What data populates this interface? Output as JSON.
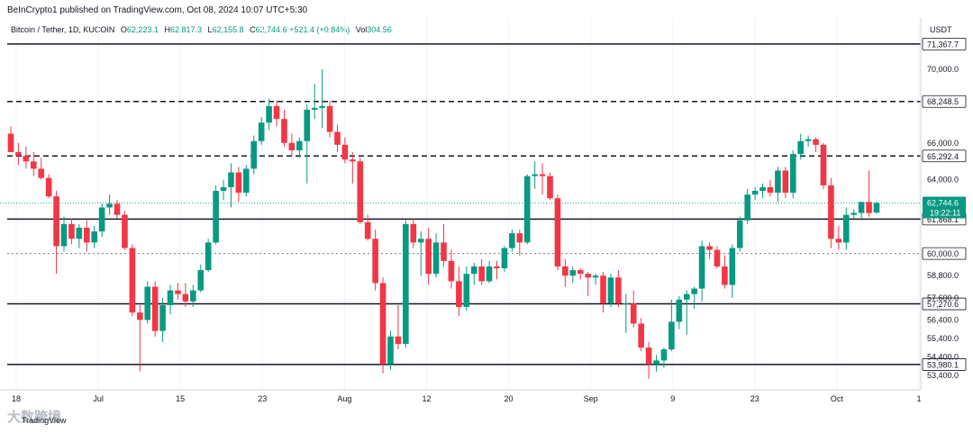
{
  "header": {
    "published": "BeInCrypto1 published on TradingView.com, Oct 08, 2024 10:07 UTC+5:30",
    "symbol": "Bitcoin / Tether, 1D, KUCOIN",
    "o_label": "O",
    "o": "62,223.1",
    "h_label": "H",
    "h": "62,817.3",
    "l_label": "L",
    "l": "62,155.8",
    "c_label": "C",
    "c": "62,744.6",
    "change": "+521.4 (+0.84%)",
    "vol_label": "Vol",
    "vol": "304.56",
    "currency": "USDT"
  },
  "footer": {
    "watermark": "大数跨境",
    "brand": "TradingView"
  },
  "colors": {
    "up": "#089981",
    "down": "#f23645",
    "level": "#131722",
    "current": "#089981"
  },
  "chart_data": {
    "type": "candlestick",
    "ylim": [
      53000,
      71800
    ],
    "y_ticks": [
      {
        "v": 70000,
        "label": "70,000.0"
      },
      {
        "v": 66000,
        "label": "66,000.0"
      },
      {
        "v": 64000,
        "label": "64,000.0"
      },
      {
        "v": 58800,
        "label": "58,800.0"
      },
      {
        "v": 57600,
        "label": "57,600.0"
      },
      {
        "v": 56400,
        "label": "56,400.0"
      },
      {
        "v": 55400,
        "label": "55,400.0"
      },
      {
        "v": 54400,
        "label": "54,400.0"
      },
      {
        "v": 53400,
        "label": "53,400.0"
      }
    ],
    "x_ticks": [
      "18",
      "Jul",
      "15",
      "23",
      "Aug",
      "12",
      "20",
      "Sep",
      "9",
      "23",
      "Oct",
      "1"
    ],
    "levels": [
      {
        "value": 71367.7,
        "label": "71,367.7",
        "style": "solid"
      },
      {
        "value": 68248.5,
        "label": "68,248.5",
        "style": "dashed"
      },
      {
        "value": 65292.4,
        "label": "65,292.4",
        "style": "dashed"
      },
      {
        "value": 61868.1,
        "label": "61,868.1",
        "style": "solid"
      },
      {
        "value": 60000.0,
        "label": "60,000.0",
        "style": "dotted"
      },
      {
        "value": 57270.6,
        "label": "57,270.6",
        "style": "solid"
      },
      {
        "value": 53980.1,
        "label": "53,980.1",
        "style": "solid"
      }
    ],
    "current": {
      "value": 62744.6,
      "label": "62,744.6",
      "countdown": "19:22:11"
    },
    "candles": [
      {
        "o": 66500,
        "h": 66900,
        "l": 65500,
        "c": 65500
      },
      {
        "o": 65500,
        "h": 66000,
        "l": 64800,
        "c": 65300
      },
      {
        "o": 65300,
        "h": 65800,
        "l": 64600,
        "c": 65000
      },
      {
        "o": 65000,
        "h": 65500,
        "l": 64200,
        "c": 64600
      },
      {
        "o": 64600,
        "h": 65200,
        "l": 64000,
        "c": 64100
      },
      {
        "o": 64100,
        "h": 64300,
        "l": 63000,
        "c": 63100
      },
      {
        "o": 63100,
        "h": 63400,
        "l": 58900,
        "c": 60400
      },
      {
        "o": 60400,
        "h": 62000,
        "l": 60100,
        "c": 61600
      },
      {
        "o": 61600,
        "h": 61900,
        "l": 60500,
        "c": 60800
      },
      {
        "o": 60800,
        "h": 61600,
        "l": 60300,
        "c": 61400
      },
      {
        "o": 61400,
        "h": 61800,
        "l": 60100,
        "c": 60600
      },
      {
        "o": 60600,
        "h": 61500,
        "l": 60300,
        "c": 61200
      },
      {
        "o": 61200,
        "h": 62700,
        "l": 60900,
        "c": 62500
      },
      {
        "o": 62500,
        "h": 63200,
        "l": 62100,
        "c": 62700
      },
      {
        "o": 62700,
        "h": 62900,
        "l": 61900,
        "c": 62100
      },
      {
        "o": 62100,
        "h": 62300,
        "l": 60200,
        "c": 60300
      },
      {
        "o": 60300,
        "h": 60500,
        "l": 56600,
        "c": 56800
      },
      {
        "o": 56800,
        "h": 57200,
        "l": 53600,
        "c": 56400
      },
      {
        "o": 56400,
        "h": 58500,
        "l": 56200,
        "c": 58200
      },
      {
        "o": 58200,
        "h": 58500,
        "l": 55500,
        "c": 55800
      },
      {
        "o": 55800,
        "h": 57600,
        "l": 55200,
        "c": 57200
      },
      {
        "o": 57200,
        "h": 58300,
        "l": 56700,
        "c": 58000
      },
      {
        "o": 58000,
        "h": 58400,
        "l": 57500,
        "c": 57800
      },
      {
        "o": 57800,
        "h": 58400,
        "l": 57100,
        "c": 57400
      },
      {
        "o": 57400,
        "h": 58300,
        "l": 57100,
        "c": 58000
      },
      {
        "o": 58000,
        "h": 59400,
        "l": 57900,
        "c": 59100
      },
      {
        "o": 59100,
        "h": 60800,
        "l": 59000,
        "c": 60600
      },
      {
        "o": 60600,
        "h": 63700,
        "l": 60500,
        "c": 63400
      },
      {
        "o": 63400,
        "h": 64000,
        "l": 62900,
        "c": 63600
      },
      {
        "o": 63600,
        "h": 64900,
        "l": 62500,
        "c": 64400
      },
      {
        "o": 64400,
        "h": 64700,
        "l": 62800,
        "c": 63300
      },
      {
        "o": 63300,
        "h": 64800,
        "l": 63100,
        "c": 64600
      },
      {
        "o": 64600,
        "h": 66400,
        "l": 64300,
        "c": 66100
      },
      {
        "o": 66100,
        "h": 67400,
        "l": 65900,
        "c": 67100
      },
      {
        "o": 67100,
        "h": 68400,
        "l": 66700,
        "c": 68000
      },
      {
        "o": 68000,
        "h": 68300,
        "l": 66900,
        "c": 67300
      },
      {
        "o": 67300,
        "h": 67800,
        "l": 65800,
        "c": 66000
      },
      {
        "o": 66000,
        "h": 66500,
        "l": 65300,
        "c": 65600
      },
      {
        "o": 65600,
        "h": 66300,
        "l": 65200,
        "c": 66100
      },
      {
        "o": 66100,
        "h": 68100,
        "l": 63800,
        "c": 67800
      },
      {
        "o": 67800,
        "h": 69200,
        "l": 67300,
        "c": 67900
      },
      {
        "o": 67900,
        "h": 70000,
        "l": 66800,
        "c": 68000
      },
      {
        "o": 68000,
        "h": 68300,
        "l": 66300,
        "c": 66600
      },
      {
        "o": 66600,
        "h": 67000,
        "l": 65500,
        "c": 65900
      },
      {
        "o": 65900,
        "h": 66300,
        "l": 64900,
        "c": 65100
      },
      {
        "o": 65100,
        "h": 65500,
        "l": 63800,
        "c": 65000
      },
      {
        "o": 65000,
        "h": 65200,
        "l": 61600,
        "c": 61700
      },
      {
        "o": 61700,
        "h": 62100,
        "l": 60700,
        "c": 60800
      },
      {
        "o": 60800,
        "h": 61300,
        "l": 58000,
        "c": 58400
      },
      {
        "o": 58400,
        "h": 58700,
        "l": 53500,
        "c": 54000
      },
      {
        "o": 54000,
        "h": 55800,
        "l": 53700,
        "c": 55500
      },
      {
        "o": 55500,
        "h": 57200,
        "l": 54800,
        "c": 55100
      },
      {
        "o": 55100,
        "h": 61800,
        "l": 54900,
        "c": 61600
      },
      {
        "o": 61600,
        "h": 61900,
        "l": 60300,
        "c": 60600
      },
      {
        "o": 60600,
        "h": 61200,
        "l": 58800,
        "c": 60800
      },
      {
        "o": 60800,
        "h": 61400,
        "l": 58300,
        "c": 58900
      },
      {
        "o": 58900,
        "h": 61100,
        "l": 58700,
        "c": 60600
      },
      {
        "o": 60600,
        "h": 61600,
        "l": 59300,
        "c": 59600
      },
      {
        "o": 59600,
        "h": 60200,
        "l": 58100,
        "c": 58500
      },
      {
        "o": 58500,
        "h": 59300,
        "l": 56600,
        "c": 57100
      },
      {
        "o": 57100,
        "h": 59300,
        "l": 56900,
        "c": 58900
      },
      {
        "o": 58900,
        "h": 59500,
        "l": 58300,
        "c": 59300
      },
      {
        "o": 59300,
        "h": 59700,
        "l": 58300,
        "c": 58500
      },
      {
        "o": 58500,
        "h": 59600,
        "l": 58400,
        "c": 59300
      },
      {
        "o": 59300,
        "h": 59600,
        "l": 58600,
        "c": 59200
      },
      {
        "o": 59200,
        "h": 60400,
        "l": 59000,
        "c": 60300
      },
      {
        "o": 60300,
        "h": 61300,
        "l": 60100,
        "c": 61100
      },
      {
        "o": 61100,
        "h": 61300,
        "l": 59900,
        "c": 60600
      },
      {
        "o": 60600,
        "h": 64300,
        "l": 60500,
        "c": 64200
      },
      {
        "o": 64200,
        "h": 65000,
        "l": 63500,
        "c": 64300
      },
      {
        "o": 64300,
        "h": 64900,
        "l": 63200,
        "c": 64200
      },
      {
        "o": 64200,
        "h": 64400,
        "l": 62900,
        "c": 63000
      },
      {
        "o": 63000,
        "h": 63200,
        "l": 59100,
        "c": 59300
      },
      {
        "o": 59300,
        "h": 59700,
        "l": 58200,
        "c": 58800
      },
      {
        "o": 58800,
        "h": 59300,
        "l": 58400,
        "c": 59100
      },
      {
        "o": 59100,
        "h": 59200,
        "l": 58600,
        "c": 58900
      },
      {
        "o": 58900,
        "h": 59000,
        "l": 57700,
        "c": 58700
      },
      {
        "o": 58700,
        "h": 58900,
        "l": 58300,
        "c": 58800
      },
      {
        "o": 58800,
        "h": 59000,
        "l": 56800,
        "c": 57300
      },
      {
        "o": 57300,
        "h": 58900,
        "l": 57100,
        "c": 58700
      },
      {
        "o": 58700,
        "h": 59100,
        "l": 57100,
        "c": 57300
      },
      {
        "o": 57300,
        "h": 57800,
        "l": 55700,
        "c": 57300
      },
      {
        "o": 57300,
        "h": 58000,
        "l": 56000,
        "c": 56200
      },
      {
        "o": 56200,
        "h": 56500,
        "l": 54700,
        "c": 54900
      },
      {
        "o": 54900,
        "h": 55200,
        "l": 53200,
        "c": 54000
      },
      {
        "o": 54000,
        "h": 54500,
        "l": 53600,
        "c": 54200
      },
      {
        "o": 54200,
        "h": 54900,
        "l": 53800,
        "c": 54800
      },
      {
        "o": 54800,
        "h": 57500,
        "l": 54700,
        "c": 56300
      },
      {
        "o": 56300,
        "h": 57700,
        "l": 55900,
        "c": 57500
      },
      {
        "o": 57500,
        "h": 58000,
        "l": 55600,
        "c": 57800
      },
      {
        "o": 57800,
        "h": 58200,
        "l": 57000,
        "c": 58100
      },
      {
        "o": 58100,
        "h": 60700,
        "l": 57400,
        "c": 60400
      },
      {
        "o": 60400,
        "h": 60600,
        "l": 59700,
        "c": 60200
      },
      {
        "o": 60200,
        "h": 60400,
        "l": 59200,
        "c": 59300
      },
      {
        "o": 59300,
        "h": 59900,
        "l": 58100,
        "c": 58300
      },
      {
        "o": 58300,
        "h": 60500,
        "l": 57600,
        "c": 60300
      },
      {
        "o": 60300,
        "h": 62000,
        "l": 60100,
        "c": 61800
      },
      {
        "o": 61800,
        "h": 63500,
        "l": 61600,
        "c": 63200
      },
      {
        "o": 63200,
        "h": 63600,
        "l": 62900,
        "c": 63400
      },
      {
        "o": 63400,
        "h": 63800,
        "l": 63000,
        "c": 63600
      },
      {
        "o": 63600,
        "h": 64000,
        "l": 63100,
        "c": 63300
      },
      {
        "o": 63300,
        "h": 64700,
        "l": 62800,
        "c": 64500
      },
      {
        "o": 64500,
        "h": 64700,
        "l": 63000,
        "c": 63300
      },
      {
        "o": 63300,
        "h": 65600,
        "l": 63000,
        "c": 65400
      },
      {
        "o": 65400,
        "h": 66500,
        "l": 65100,
        "c": 66100
      },
      {
        "o": 66100,
        "h": 66400,
        "l": 65800,
        "c": 66200
      },
      {
        "o": 66200,
        "h": 66300,
        "l": 65500,
        "c": 65900
      },
      {
        "o": 65900,
        "h": 66000,
        "l": 63500,
        "c": 63700
      },
      {
        "o": 63700,
        "h": 64100,
        "l": 60300,
        "c": 60800
      },
      {
        "o": 60800,
        "h": 61500,
        "l": 60200,
        "c": 60600
      },
      {
        "o": 60600,
        "h": 62500,
        "l": 60200,
        "c": 62100
      },
      {
        "o": 62100,
        "h": 62400,
        "l": 61900,
        "c": 62200
      },
      {
        "o": 62200,
        "h": 62800,
        "l": 61800,
        "c": 62800
      },
      {
        "o": 62800,
        "h": 64500,
        "l": 62000,
        "c": 62200
      },
      {
        "o": 62223.1,
        "h": 62817.3,
        "l": 62155.8,
        "c": 62744.6
      }
    ]
  }
}
